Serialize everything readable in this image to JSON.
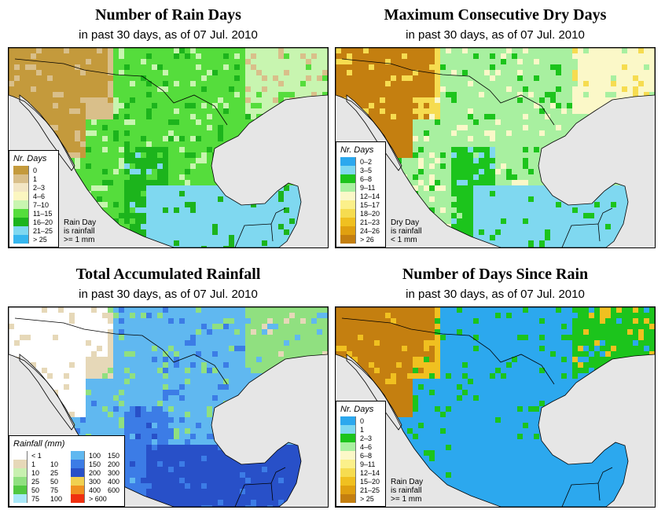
{
  "panels": [
    {
      "title": "Number of Rain Days",
      "subtitle": "in past 30 days, as of  07 Jul. 2010",
      "legend_title": "Nr. Days",
      "legend": [
        {
          "label": "0",
          "color": "#c49a3c"
        },
        {
          "label": "1",
          "color": "#d9bf8a"
        },
        {
          "label": "2–3",
          "color": "#f3e6c4"
        },
        {
          "label": "4–6",
          "color": "#fbf6c0"
        },
        {
          "label": "7–10",
          "color": "#c8f5b0"
        },
        {
          "label": "11–15",
          "color": "#55dd3c"
        },
        {
          "label": "16–20",
          "color": "#1cb41c"
        },
        {
          "label": "21–25",
          "color": "#7fd8f0"
        },
        {
          "label": "> 25",
          "color": "#36b6ee"
        }
      ],
      "note": [
        "Rain Day",
        "is rainfall",
        ">= 1 mm"
      ],
      "palette": {
        "desert": "#c49a3c",
        "dry": "#d9bf8a",
        "mid": "#c8f5b0",
        "wet": "#55dd3c",
        "verywet": "#1cb41c",
        "south": "#7fd8f0"
      }
    },
    {
      "title": "Maximum Consecutive Dry Days",
      "subtitle": "in past 30 days, as of  07 Jul. 2010",
      "legend_title": "Nr. Days",
      "legend": [
        {
          "label": "0–2",
          "color": "#2ca8ee"
        },
        {
          "label": "3–5",
          "color": "#7fd8f0"
        },
        {
          "label": "6–8",
          "color": "#1cc41c"
        },
        {
          "label": "9–11",
          "color": "#a8f0a0"
        },
        {
          "label": "12–14",
          "color": "#fbf8c8"
        },
        {
          "label": "15–17",
          "color": "#fbf08a"
        },
        {
          "label": "18–20",
          "color": "#f6dc50"
        },
        {
          "label": "21–23",
          "color": "#f0c020"
        },
        {
          "label": "24–26",
          "color": "#e0a010"
        },
        {
          "label": "> 26",
          "color": "#c47f10"
        }
      ],
      "note": [
        "Dry Day",
        "is rainfall",
        "< 1 mm"
      ],
      "palette": {
        "desert": "#c47f10",
        "dry": "#f6dc50",
        "mid": "#fbf8c8",
        "wet": "#a8f0a0",
        "verywet": "#1cc41c",
        "south": "#7fd8f0"
      }
    },
    {
      "title": "Total Accumulated Rainfall",
      "subtitle": "in past 30 days, as of  07 Jul. 2010",
      "legend_title": "Rainfall (mm)",
      "legend_rain": [
        {
          "lo": "< 1",
          "hi": "",
          "color": "#ffffff"
        },
        {
          "lo": "1",
          "hi": "10",
          "color": "#e6d8b8"
        },
        {
          "lo": "10",
          "hi": "25",
          "color": "#c8f0b0"
        },
        {
          "lo": "25",
          "hi": "50",
          "color": "#90e080"
        },
        {
          "lo": "50",
          "hi": "75",
          "color": "#50c840"
        },
        {
          "lo": "75",
          "hi": "100",
          "color": "#a8e8f8"
        },
        {
          "lo": "100",
          "hi": "150",
          "color": "#60b8f0"
        },
        {
          "lo": "150",
          "hi": "200",
          "color": "#3c7ce6"
        },
        {
          "lo": "200",
          "hi": "300",
          "color": "#2850c8"
        },
        {
          "lo": "300",
          "hi": "400",
          "color": "#f0d050"
        },
        {
          "lo": "400",
          "hi": "600",
          "color": "#f09020"
        },
        {
          "lo": "> 600",
          "hi": "",
          "color": "#f03010"
        }
      ],
      "palette": {
        "desert": "#ffffff",
        "dry": "#e6d8b8",
        "mid": "#90e080",
        "wet": "#60b8f0",
        "verywet": "#3c7ce6",
        "south": "#2850c8"
      }
    },
    {
      "title": "Number of Days Since Rain",
      "subtitle": "in past 30 days, as of  07 Jul. 2010",
      "legend_title": "Nr. Days",
      "legend": [
        {
          "label": "0",
          "color": "#2ca8ee"
        },
        {
          "label": "1",
          "color": "#7fd8f0"
        },
        {
          "label": "2–3",
          "color": "#1cc41c"
        },
        {
          "label": "4–6",
          "color": "#a8f0a0"
        },
        {
          "label": "6–8",
          "color": "#fbf8c8"
        },
        {
          "label": "9–11",
          "color": "#fbf08a"
        },
        {
          "label": "12–14",
          "color": "#f6dc50"
        },
        {
          "label": "15–20",
          "color": "#f0c020"
        },
        {
          "label": "21–25",
          "color": "#e0a010"
        },
        {
          "label": "> 25",
          "color": "#c47f10"
        }
      ],
      "note": [
        "Rain Day",
        "is rainfall",
        ">= 1 mm"
      ],
      "palette": {
        "desert": "#c47f10",
        "dry": "#f0c020",
        "mid": "#1cc41c",
        "wet": "#2ca8ee",
        "verywet": "#2ca8ee",
        "south": "#2ca8ee"
      }
    }
  ],
  "colors": {
    "ocean": "#e6e6e6",
    "border": "#000000"
  }
}
